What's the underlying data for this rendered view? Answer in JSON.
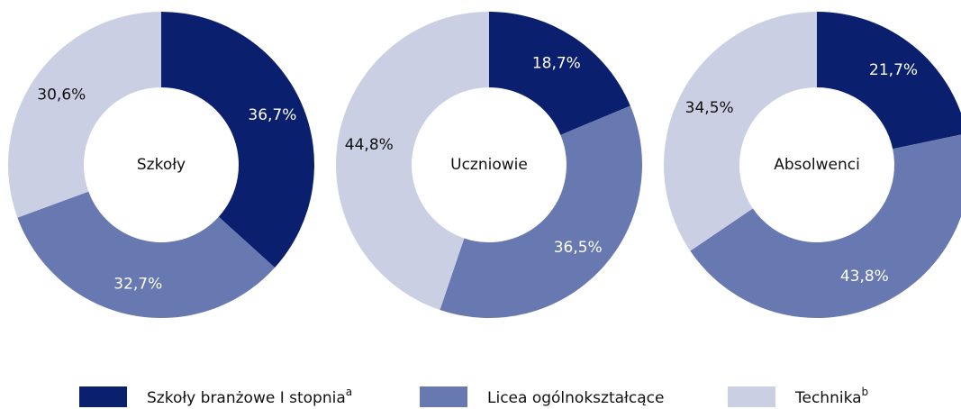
{
  "chart_data": [
    {
      "type": "donut",
      "title": "Szkoły",
      "values": [
        36.7,
        32.7,
        30.6
      ],
      "value_labels": [
        "36,7%",
        "32,7%",
        "30,6%"
      ]
    },
    {
      "type": "donut",
      "title": "Uczniowie",
      "values": [
        18.7,
        36.5,
        44.8
      ],
      "value_labels": [
        "18,7%",
        "36,5%",
        "44,8%"
      ]
    },
    {
      "type": "donut",
      "title": "Absolwenci",
      "values": [
        21.7,
        43.8,
        34.5
      ],
      "value_labels": [
        "21,7%",
        "43,8%",
        "34,5%"
      ]
    }
  ],
  "legend": [
    {
      "name": "Szkoły branżowe I stopnia",
      "sup": "a",
      "color": "#0b1f6f",
      "label_color": "#ffffff"
    },
    {
      "name": "Licea ogólnokształcące",
      "color": "#6878b0",
      "label_color": "#ffffff"
    },
    {
      "name": "Technika",
      "sup": "b",
      "color": "#cbcfe3",
      "label_color": "#111111"
    }
  ]
}
